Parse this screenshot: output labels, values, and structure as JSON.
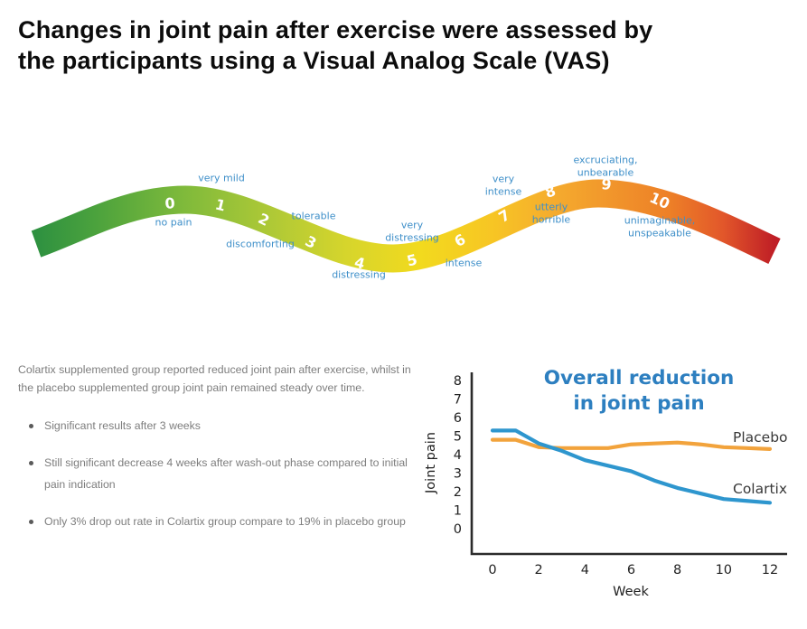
{
  "header": {
    "title_line1": "Changes in joint pain after exercise were assessed by",
    "title_line2": "the participants using a Visual Analog Scale (VAS)"
  },
  "vas_scale": {
    "points": [
      {
        "value": "0",
        "label": "no pain"
      },
      {
        "value": "1",
        "label": "very mild"
      },
      {
        "value": "2",
        "label": "tolerable"
      },
      {
        "value": "3",
        "label": "discomforting"
      },
      {
        "value": "4",
        "label": "distressing"
      },
      {
        "value": "5",
        "label": "intense"
      },
      {
        "value": "6",
        "label": "very distressing"
      },
      {
        "value": "7",
        "label": "very intense"
      },
      {
        "value": "8",
        "label": "utterly horrible"
      },
      {
        "value": "9",
        "label": "excruciating, unbearable"
      },
      {
        "value": "10",
        "label": "unimaginable, unspeakable"
      }
    ],
    "gradient_stops": [
      {
        "offset": 0.0,
        "color": "#2E9140"
      },
      {
        "offset": 0.08,
        "color": "#4BA23D"
      },
      {
        "offset": 0.2,
        "color": "#7FBA3B"
      },
      {
        "offset": 0.32,
        "color": "#AFC936"
      },
      {
        "offset": 0.42,
        "color": "#D6D52C"
      },
      {
        "offset": 0.52,
        "color": "#F2DA1E"
      },
      {
        "offset": 0.62,
        "color": "#F7C524"
      },
      {
        "offset": 0.7,
        "color": "#F5AC2E"
      },
      {
        "offset": 0.78,
        "color": "#F1952B"
      },
      {
        "offset": 0.86,
        "color": "#ED7F27"
      },
      {
        "offset": 0.93,
        "color": "#E2572A"
      },
      {
        "offset": 1.0,
        "color": "#BF1E26"
      }
    ],
    "label_color": "#3E8FC9",
    "number_color": "#FFFFFF"
  },
  "summary": {
    "paragraph": "Colartix supplemented group reported reduced joint pain after exercise, whilst in the placebo supplemented group joint pain remained steady over time.",
    "bullets": [
      "Significant results after 3 weeks",
      "Still significant decrease 4 weeks after wash-out phase compared to initial pain indication",
      "Only 3% drop out rate in Colartix group compare to 19% in placebo group"
    ]
  },
  "chart_data": {
    "type": "line",
    "title_line1": "Overall reduction",
    "title_line2": "in joint pain",
    "title_color": "#2D7FC0",
    "xlabel": "Week",
    "ylabel": "Joint pain",
    "x": [
      0,
      1,
      2,
      3,
      4,
      5,
      6,
      7,
      8,
      9,
      10,
      11,
      12
    ],
    "xticks": [
      0,
      2,
      4,
      6,
      8,
      10,
      12
    ],
    "yticks": [
      0,
      1,
      2,
      3,
      4,
      5,
      6,
      7,
      8
    ],
    "xlim": [
      0,
      12
    ],
    "ylim": [
      0,
      8
    ],
    "grid": false,
    "legend_position": "inline-right",
    "series": [
      {
        "name": "Placebo",
        "color": "#F2A33C",
        "values": [
          4.8,
          4.8,
          4.4,
          4.35,
          4.35,
          4.35,
          4.55,
          4.6,
          4.65,
          4.55,
          4.4,
          4.35,
          4.3
        ]
      },
      {
        "name": "Colartix",
        "color": "#2E96CE",
        "values": [
          5.3,
          5.3,
          4.6,
          4.2,
          3.7,
          3.4,
          3.1,
          2.6,
          2.2,
          1.9,
          1.6,
          1.5,
          1.4
        ]
      }
    ]
  }
}
